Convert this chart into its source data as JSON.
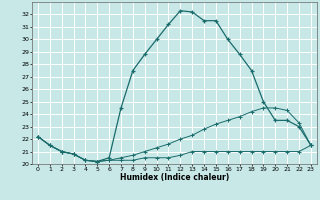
{
  "title": "",
  "xlabel": "Humidex (Indice chaleur)",
  "bg_color": "#c8e8e8",
  "grid_color": "#ffffff",
  "line_color": "#1a6b6b",
  "xlim": [
    -0.5,
    23.5
  ],
  "ylim": [
    20,
    33
  ],
  "xticks": [
    0,
    1,
    2,
    3,
    4,
    5,
    6,
    7,
    8,
    9,
    10,
    11,
    12,
    13,
    14,
    15,
    16,
    17,
    18,
    19,
    20,
    21,
    22,
    23
  ],
  "yticks": [
    20,
    21,
    22,
    23,
    24,
    25,
    26,
    27,
    28,
    29,
    30,
    31,
    32
  ],
  "series1_x": [
    0,
    1,
    2,
    3,
    4,
    5,
    6,
    7,
    8,
    9,
    10,
    11,
    12,
    13,
    14,
    15,
    16,
    17,
    18,
    19,
    20,
    21,
    22,
    23
  ],
  "series1_y": [
    22.2,
    21.5,
    21.0,
    20.8,
    20.3,
    20.2,
    20.5,
    24.5,
    27.5,
    28.8,
    30.0,
    31.2,
    32.3,
    32.2,
    31.5,
    31.5,
    30.0,
    28.8,
    27.5,
    25.0,
    23.5,
    23.5,
    23.0,
    21.5
  ],
  "series2_x": [
    0,
    1,
    2,
    3,
    4,
    5,
    6,
    7,
    8,
    9,
    10,
    11,
    12,
    13,
    14,
    15,
    16,
    17,
    18,
    19,
    20,
    21,
    22,
    23
  ],
  "series2_y": [
    22.2,
    21.5,
    21.0,
    20.8,
    20.3,
    20.2,
    20.3,
    20.5,
    20.7,
    21.0,
    21.3,
    21.6,
    22.0,
    22.3,
    22.8,
    23.2,
    23.5,
    23.8,
    24.2,
    24.5,
    24.5,
    24.3,
    23.3,
    21.5
  ],
  "series3_x": [
    0,
    1,
    2,
    3,
    4,
    5,
    6,
    7,
    8,
    9,
    10,
    11,
    12,
    13,
    14,
    15,
    16,
    17,
    18,
    19,
    20,
    21,
    22,
    23
  ],
  "series3_y": [
    22.2,
    21.5,
    21.0,
    20.8,
    20.3,
    20.2,
    20.3,
    20.3,
    20.3,
    20.5,
    20.5,
    20.5,
    20.7,
    21.0,
    21.0,
    21.0,
    21.0,
    21.0,
    21.0,
    21.0,
    21.0,
    21.0,
    21.0,
    21.5
  ]
}
